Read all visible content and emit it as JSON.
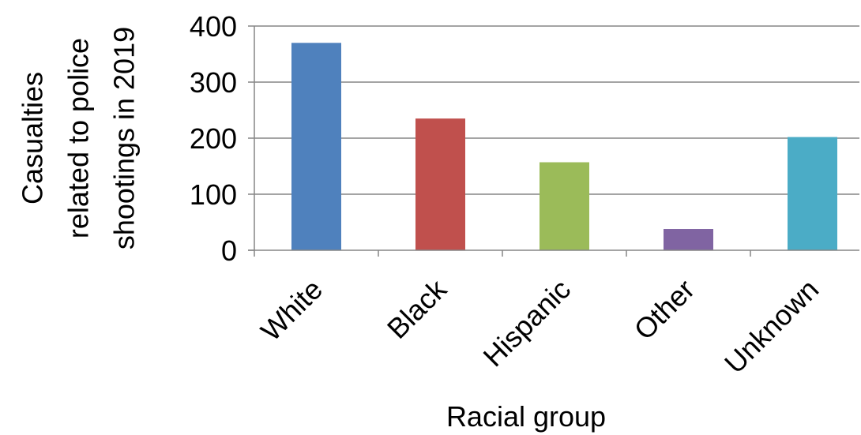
{
  "chart_data": {
    "type": "bar",
    "categories": [
      "White",
      "Black",
      "Hispanic",
      "Other",
      "Unknown"
    ],
    "values": [
      370,
      235,
      157,
      38,
      202
    ],
    "colors": [
      "#4F81BD",
      "#C0504D",
      "#9BBB59",
      "#8064A2",
      "#4BACC6"
    ],
    "xlabel": "Racial group",
    "ylabel_lines": [
      "Casualties",
      "related to police",
      "shootings in 2019"
    ],
    "ylim": [
      0,
      400
    ],
    "yticks": [
      0,
      100,
      200,
      300,
      400
    ],
    "grid": true,
    "legend": "none"
  }
}
